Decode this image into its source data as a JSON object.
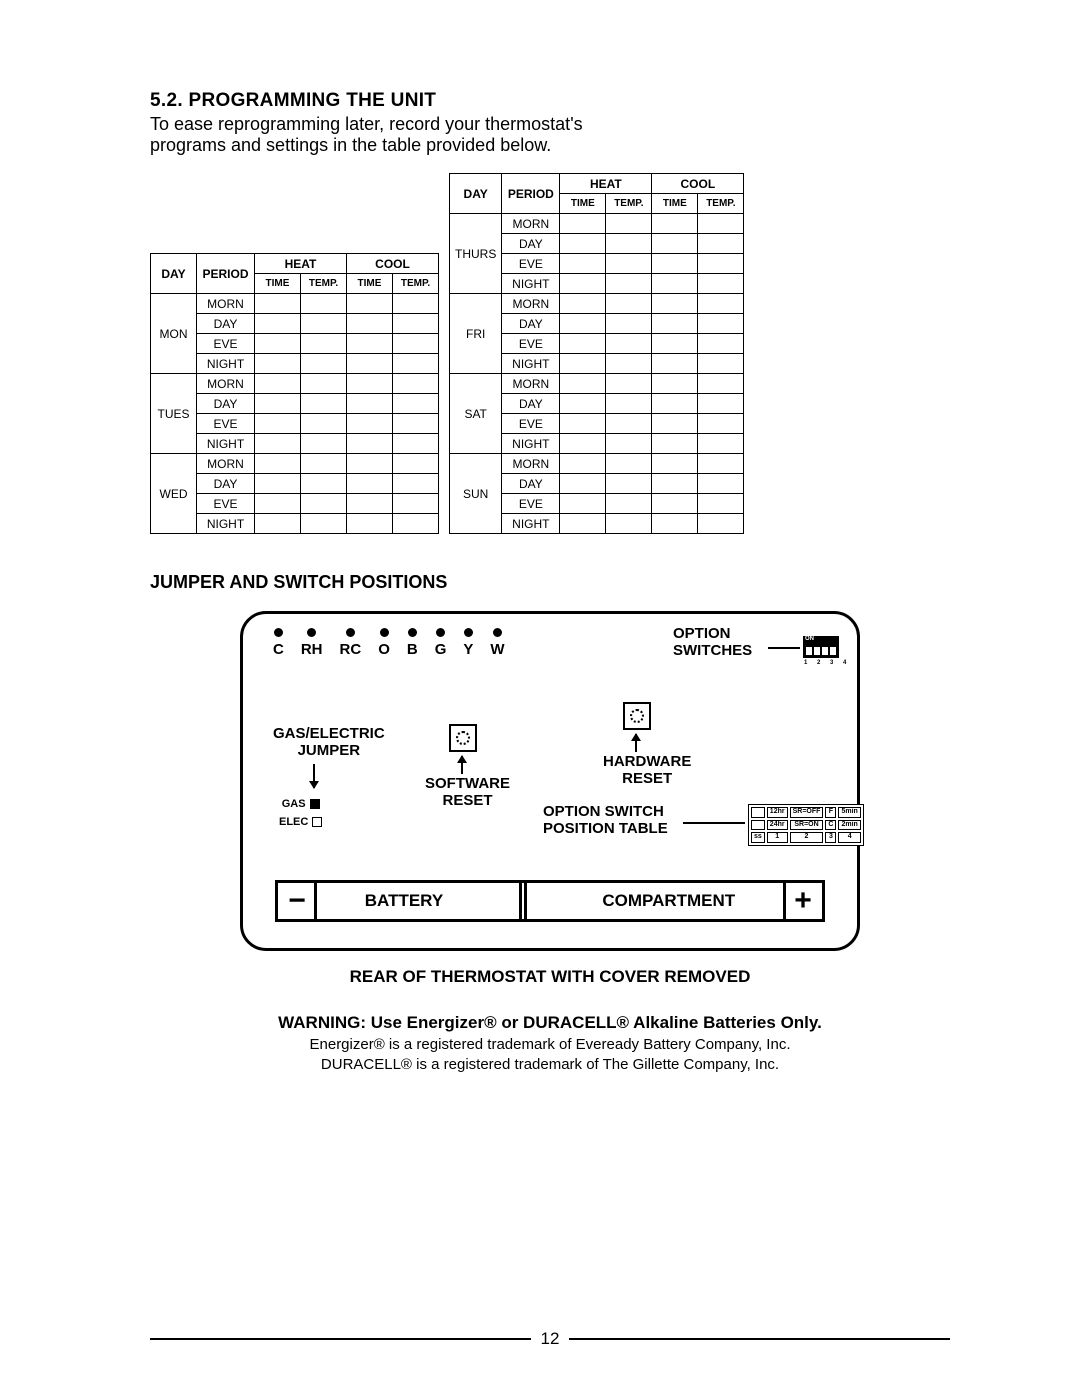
{
  "section": {
    "number": "5.2.",
    "title": "PROGRAMMING THE UNIT",
    "intro_line1": "To ease reprogramming later, record your thermostat's",
    "intro_line2": "programs and settings in the table provided below."
  },
  "table_headers": {
    "day": "DAY",
    "period": "PERIOD",
    "heat": "HEAT",
    "cool": "COOL",
    "time": "TIME",
    "temp": "TEMP."
  },
  "periods": [
    "MORN",
    "DAY",
    "EVE",
    "NIGHT"
  ],
  "days_left": [
    "MON",
    "TUES",
    "WED"
  ],
  "days_right": [
    "THURS",
    "FRI",
    "SAT",
    "SUN"
  ],
  "jumper_title": "JUMPER AND SWITCH POSITIONS",
  "diagram": {
    "terminals": [
      "C",
      "RH",
      "RC",
      "O",
      "B",
      "G",
      "Y",
      "W"
    ],
    "option_switches": "OPTION\nSWITCHES",
    "dip_numbers": "1 2 3 4",
    "gas_electric_jumper": "GAS/ELECTRIC\nJUMPER",
    "gas": "GAS",
    "elec": "ELEC",
    "software_reset": "SOFTWARE\nRESET",
    "hardware_reset": "HARDWARE\nRESET",
    "option_switch_position_table": "OPTION SWITCH\nPOSITION TABLE",
    "opt_table_rows": [
      [
        "",
        "12hr",
        "SR=OFF",
        "F",
        "5min"
      ],
      [
        "",
        "24hr",
        "SR=ON",
        "C",
        "2min"
      ],
      [
        "ss",
        "1",
        "2",
        "3",
        "4"
      ]
    ],
    "battery_minus": "−",
    "battery_label": "BATTERY",
    "compartment_label": "COMPARTMENT",
    "battery_plus": "+"
  },
  "diagram_caption": "REAR OF THERMOSTAT WITH COVER REMOVED",
  "warning_bold": "WARNING:",
  "warning_text": " Use Energizer® or DURACELL® Alkaline Batteries Only.",
  "trademark1": "Energizer® is a registered trademark of Eveready Battery Company, Inc.",
  "trademark2": "DURACELL® is a registered trademark of The Gillette Company, Inc.",
  "page_number": "12",
  "colors": {
    "text": "#000000",
    "bg": "#ffffff",
    "border": "#000000"
  }
}
